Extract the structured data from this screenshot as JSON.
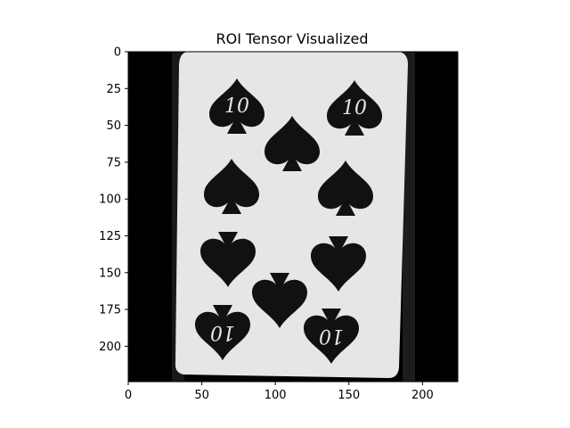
{
  "chart_data": {
    "type": "image",
    "title": "ROI Tensor Visualized",
    "xlabel": "",
    "ylabel": "",
    "xlim": [
      0,
      224
    ],
    "ylim": [
      224,
      0
    ],
    "x_ticks": [
      "0",
      "50",
      "100",
      "150",
      "200"
    ],
    "y_ticks": [
      "0",
      "25",
      "50",
      "75",
      "100",
      "125",
      "150",
      "175",
      "200"
    ],
    "grid": false,
    "image_content": {
      "subject": "playing card, ten of spades, grayscale",
      "corner_rank_label": "10",
      "pip_suit": "spade",
      "pip_count": 10,
      "colors": {
        "background": "#000000",
        "card": "#e6e6e6",
        "pip": "#111111",
        "side_band": "#1a1a1a"
      }
    }
  }
}
